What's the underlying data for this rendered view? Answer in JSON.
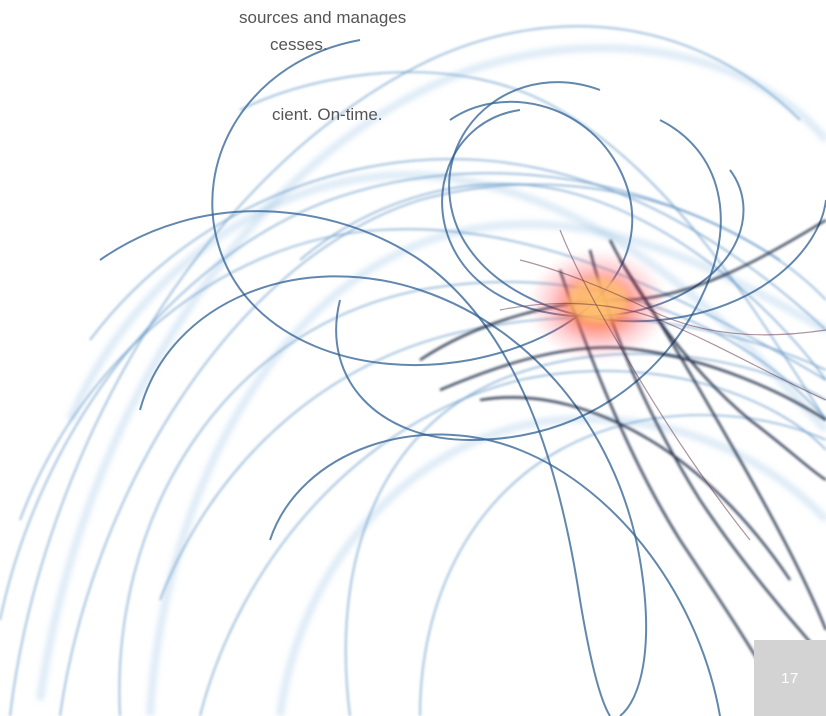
{
  "body_text": {
    "line_1": "sources and manages",
    "line_2": "cesses.",
    "line_3": "cient. On-time."
  },
  "footer": {
    "page_number": "17"
  },
  "colors": {
    "text": "#555555",
    "page_number_box": "#d3d3d3",
    "page_number_text": "#ffffff",
    "curve_blue": "#2f6fa8",
    "curve_dark": "#1b2a44",
    "glow_orange": "#ff8a2a",
    "glow_red": "#ff3b3b"
  }
}
